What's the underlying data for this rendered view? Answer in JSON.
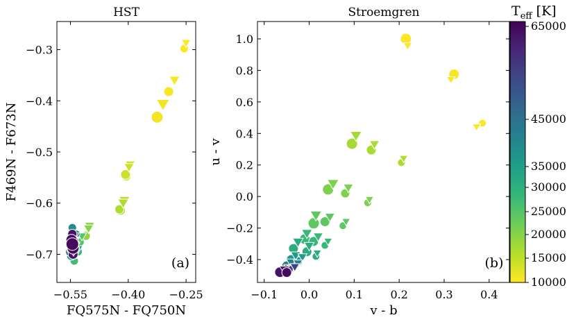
{
  "chart_data": [
    {
      "type": "scatter",
      "id": "hst",
      "title": "HST",
      "xlabel": "FQ575N - FQ750N",
      "ylabel": "F469N - F673N",
      "xlim": [
        -0.585,
        -0.225
      ],
      "ylim": [
        -0.755,
        -0.245
      ],
      "xticks": [
        -0.55,
        -0.4,
        -0.25
      ],
      "xtick_labels": [
        "−0.55",
        "−0.40",
        "−0.25"
      ],
      "yticks": [
        -0.3,
        -0.4,
        -0.5,
        -0.6,
        -0.7
      ],
      "ytick_labels": [
        "−0.3",
        "−0.4",
        "−0.5",
        "−0.6",
        "−0.7"
      ],
      "panel_label": "(a)",
      "series": [
        {
          "name": "circles",
          "marker": "circle",
          "points": [
            {
              "x": -0.255,
              "y": -0.298,
              "t": 10000,
              "s": 6
            },
            {
              "x": -0.295,
              "y": -0.382,
              "t": 10500,
              "s": 7
            },
            {
              "x": -0.325,
              "y": -0.432,
              "t": 11000,
              "s": 8.5
            },
            {
              "x": -0.405,
              "y": -0.548,
              "t": 13500,
              "s": 6.5
            },
            {
              "x": -0.407,
              "y": -0.544,
              "t": 14000,
              "s": 7
            },
            {
              "x": -0.42,
              "y": -0.614,
              "t": 16000,
              "s": 7
            },
            {
              "x": -0.423,
              "y": -0.612,
              "t": 16500,
              "s": 6.5
            },
            {
              "x": -0.51,
              "y": -0.664,
              "t": 19000,
              "s": 6.5
            },
            {
              "x": -0.525,
              "y": -0.676,
              "t": 25000,
              "s": 6
            },
            {
              "x": -0.54,
              "y": -0.713,
              "t": 27000,
              "s": 6
            },
            {
              "x": -0.53,
              "y": -0.695,
              "t": 28000,
              "s": 6
            },
            {
              "x": -0.545,
              "y": -0.7,
              "t": 31000,
              "s": 6
            },
            {
              "x": -0.548,
              "y": -0.703,
              "t": 33000,
              "s": 6.5
            },
            {
              "x": -0.545,
              "y": -0.648,
              "t": 39000,
              "s": 6
            },
            {
              "x": -0.535,
              "y": -0.66,
              "t": 41000,
              "s": 5.5
            },
            {
              "x": -0.55,
              "y": -0.695,
              "t": 43000,
              "s": 7
            },
            {
              "x": -0.542,
              "y": -0.67,
              "t": 47000,
              "s": 6
            },
            {
              "x": -0.546,
              "y": -0.682,
              "t": 52000,
              "s": 7
            },
            {
              "x": -0.54,
              "y": -0.688,
              "t": 55000,
              "s": 7.5
            },
            {
              "x": -0.545,
              "y": -0.69,
              "t": 58000,
              "s": 8
            },
            {
              "x": -0.542,
              "y": -0.675,
              "t": 61000,
              "s": 7.5
            },
            {
              "x": -0.545,
              "y": -0.66,
              "t": 63000,
              "s": 6.5
            },
            {
              "x": -0.543,
              "y": -0.7,
              "t": 63000,
              "s": 7
            },
            {
              "x": -0.547,
              "y": -0.672,
              "t": 64000,
              "s": 8
            },
            {
              "x": -0.543,
              "y": -0.688,
              "t": 64500,
              "s": 8.5
            },
            {
              "x": -0.545,
              "y": -0.68,
              "t": 65000,
              "s": 9
            }
          ]
        },
        {
          "name": "triangles",
          "marker": "triangle-down",
          "points": [
            {
              "x": -0.25,
              "y": -0.287,
              "t": 10000,
              "s": 6
            },
            {
              "x": -0.28,
              "y": -0.36,
              "t": 10500,
              "s": 7
            },
            {
              "x": -0.31,
              "y": -0.407,
              "t": 11000,
              "s": 8.5
            },
            {
              "x": -0.395,
              "y": -0.525,
              "t": 13500,
              "s": 6.5
            },
            {
              "x": -0.398,
              "y": -0.53,
              "t": 14000,
              "s": 6.5
            },
            {
              "x": -0.41,
              "y": -0.595,
              "t": 16000,
              "s": 7
            },
            {
              "x": -0.413,
              "y": -0.6,
              "t": 16500,
              "s": 7
            },
            {
              "x": -0.5,
              "y": -0.645,
              "t": 19000,
              "s": 6.5
            },
            {
              "x": -0.503,
              "y": -0.65,
              "t": 20000,
              "s": 6.5
            },
            {
              "x": -0.52,
              "y": -0.665,
              "t": 25000,
              "s": 6
            },
            {
              "x": -0.535,
              "y": -0.7,
              "t": 27000,
              "s": 6
            },
            {
              "x": -0.537,
              "y": -0.683,
              "t": 30000,
              "s": 6
            },
            {
              "x": -0.53,
              "y": -0.69,
              "t": 33000,
              "s": 6
            },
            {
              "x": -0.535,
              "y": -0.66,
              "t": 40000,
              "s": 5.5
            },
            {
              "x": -0.54,
              "y": -0.675,
              "t": 48000,
              "s": 6
            },
            {
              "x": -0.538,
              "y": -0.685,
              "t": 56000,
              "s": 6
            },
            {
              "x": -0.54,
              "y": -0.665,
              "t": 62000,
              "s": 6
            },
            {
              "x": -0.542,
              "y": -0.695,
              "t": 64000,
              "s": 6
            }
          ]
        }
      ]
    },
    {
      "type": "scatter",
      "id": "stroemgren",
      "title": "Stroemgren",
      "xlabel": "v - b",
      "ylabel": "u - v",
      "xlim": [
        -0.115,
        0.445
      ],
      "ylim": [
        -0.545,
        1.11
      ],
      "xticks": [
        -0.1,
        0.0,
        0.1,
        0.2,
        0.3,
        0.4
      ],
      "xtick_labels": [
        "−0.1",
        "0.0",
        "0.1",
        "0.2",
        "0.3",
        "0.4"
      ],
      "yticks": [
        1.0,
        0.8,
        0.6,
        0.4,
        0.2,
        0.0,
        -0.2,
        -0.4
      ],
      "ytick_labels": [
        "1.0",
        "0.8",
        "0.6",
        "0.4",
        "0.2",
        "0.0",
        "−0.2",
        "−0.4"
      ],
      "panel_label": "(b)",
      "series": [
        {
          "name": "circles",
          "marker": "circle",
          "points": [
            {
              "x": 0.215,
              "y": 1.0,
              "t": 10000,
              "s": 8
            },
            {
              "x": 0.322,
              "y": 0.775,
              "t": 10500,
              "s": 7.5
            },
            {
              "x": 0.385,
              "y": 0.465,
              "t": 10200,
              "s": 5.5
            },
            {
              "x": 0.095,
              "y": 0.335,
              "t": 17500,
              "s": 8
            },
            {
              "x": 0.138,
              "y": 0.295,
              "t": 17000,
              "s": 7
            },
            {
              "x": 0.205,
              "y": 0.215,
              "t": 16500,
              "s": 5.5
            },
            {
              "x": 0.042,
              "y": 0.045,
              "t": 21000,
              "s": 8
            },
            {
              "x": 0.08,
              "y": 0.02,
              "t": 21000,
              "s": 6.5
            },
            {
              "x": 0.13,
              "y": -0.04,
              "t": 21000,
              "s": 5.5
            },
            {
              "x": 0.01,
              "y": -0.17,
              "t": 24000,
              "s": 8
            },
            {
              "x": 0.035,
              "y": -0.16,
              "t": 24000,
              "s": 7
            },
            {
              "x": 0.075,
              "y": -0.185,
              "t": 24000,
              "s": 5.5
            },
            {
              "x": -0.01,
              "y": -0.27,
              "t": 28000,
              "s": 7.5
            },
            {
              "x": 0.01,
              "y": -0.285,
              "t": 28000,
              "s": 7
            },
            {
              "x": 0.035,
              "y": -0.31,
              "t": 28000,
              "s": 5.5
            },
            {
              "x": -0.035,
              "y": -0.33,
              "t": 31000,
              "s": 7
            },
            {
              "x": -0.005,
              "y": -0.35,
              "t": 31000,
              "s": 7
            },
            {
              "x": 0.015,
              "y": -0.38,
              "t": 31000,
              "s": 5.5
            },
            {
              "x": -0.04,
              "y": -0.4,
              "t": 36000,
              "s": 7
            },
            {
              "x": -0.025,
              "y": -0.41,
              "t": 36000,
              "s": 6.5
            },
            {
              "x": -0.05,
              "y": -0.44,
              "t": 42000,
              "s": 7
            },
            {
              "x": -0.035,
              "y": -0.44,
              "t": 42000,
              "s": 6
            },
            {
              "x": -0.055,
              "y": -0.47,
              "t": 52000,
              "s": 7
            },
            {
              "x": -0.045,
              "y": -0.462,
              "t": 55000,
              "s": 6
            },
            {
              "x": -0.065,
              "y": -0.48,
              "t": 63000,
              "s": 7.5
            },
            {
              "x": -0.05,
              "y": -0.482,
              "t": 64500,
              "s": 7
            }
          ]
        },
        {
          "name": "triangles",
          "marker": "triangle-down",
          "points": [
            {
              "x": 0.219,
              "y": 0.955,
              "t": 10000,
              "s": 5.5
            },
            {
              "x": 0.315,
              "y": 0.74,
              "t": 10500,
              "s": 5.5
            },
            {
              "x": 0.372,
              "y": 0.44,
              "t": 10200,
              "s": 5.5
            },
            {
              "x": 0.104,
              "y": 0.385,
              "t": 17500,
              "s": 7.5
            },
            {
              "x": 0.145,
              "y": 0.33,
              "t": 17000,
              "s": 6.5
            },
            {
              "x": 0.21,
              "y": 0.24,
              "t": 16500,
              "s": 5.5
            },
            {
              "x": 0.053,
              "y": 0.08,
              "t": 21000,
              "s": 7.5
            },
            {
              "x": 0.087,
              "y": 0.055,
              "t": 21000,
              "s": 6.5
            },
            {
              "x": 0.134,
              "y": -0.02,
              "t": 21000,
              "s": 5.5
            },
            {
              "x": 0.015,
              "y": -0.12,
              "t": 24000,
              "s": 7.5
            },
            {
              "x": 0.046,
              "y": -0.13,
              "t": 24000,
              "s": 6.5
            },
            {
              "x": 0.082,
              "y": -0.16,
              "t": 24000,
              "s": 5.5
            },
            {
              "x": -0.005,
              "y": -0.235,
              "t": 28000,
              "s": 7
            },
            {
              "x": 0.02,
              "y": -0.255,
              "t": 28000,
              "s": 6.5
            },
            {
              "x": 0.042,
              "y": -0.285,
              "t": 28000,
              "s": 5.5
            },
            {
              "x": -0.025,
              "y": -0.29,
              "t": 31000,
              "s": 7
            },
            {
              "x": -0.0,
              "y": -0.315,
              "t": 31000,
              "s": 6.5
            },
            {
              "x": 0.018,
              "y": -0.36,
              "t": 31000,
              "s": 5.5
            },
            {
              "x": -0.03,
              "y": -0.375,
              "t": 36000,
              "s": 6.5
            },
            {
              "x": -0.015,
              "y": -0.385,
              "t": 36000,
              "s": 6
            },
            {
              "x": -0.04,
              "y": -0.42,
              "t": 42000,
              "s": 6.5
            },
            {
              "x": -0.025,
              "y": -0.425,
              "t": 42000,
              "s": 6
            },
            {
              "x": -0.045,
              "y": -0.455,
              "t": 52000,
              "s": 6.5
            },
            {
              "x": -0.032,
              "y": -0.448,
              "t": 55000,
              "s": 6
            },
            {
              "x": -0.055,
              "y": -0.465,
              "t": 63000,
              "s": 6.5
            }
          ]
        }
      ]
    }
  ],
  "colorbar": {
    "label_main": "T",
    "label_sub": "eff",
    "label_unit": " [K]",
    "colormap": "viridis",
    "stops": [
      "#fde725",
      "#b5de2b",
      "#6ece58",
      "#35b779",
      "#1f9e89",
      "#26828e",
      "#31688e",
      "#3e4989",
      "#482878",
      "#440154"
    ],
    "vmin": 10000,
    "vmax": 65000,
    "ticks": [
      10000,
      15000,
      20000,
      25000,
      30000,
      35000,
      45000,
      65000
    ],
    "tick_labels": [
      "10000",
      "15000",
      "20000",
      "25000",
      "30000",
      "35000",
      "45000",
      "65000"
    ]
  }
}
